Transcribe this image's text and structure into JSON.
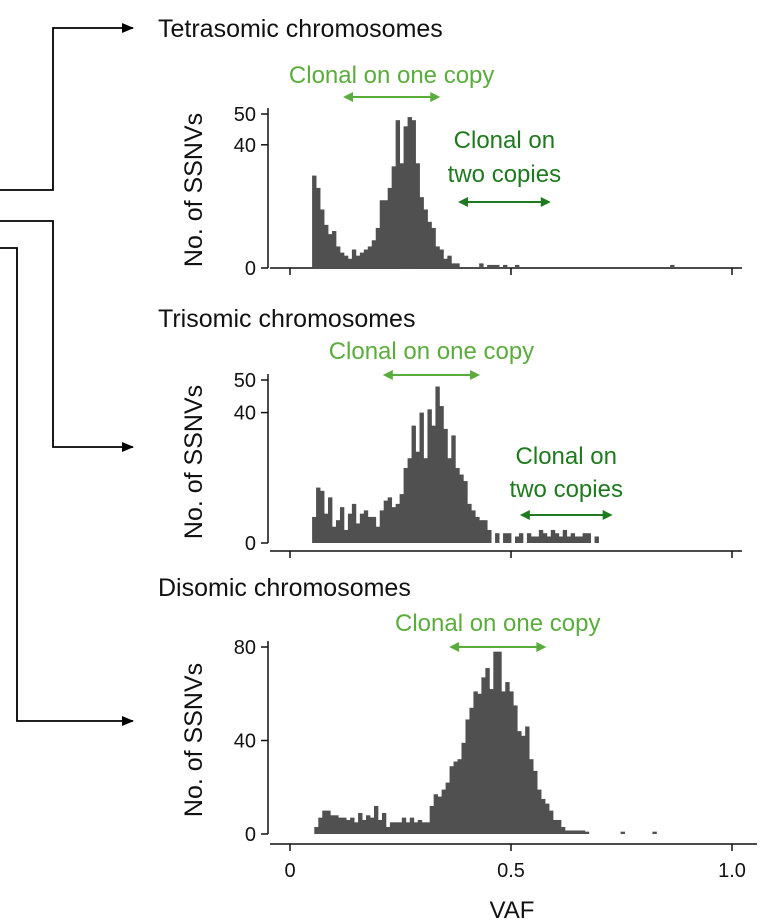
{
  "colors": {
    "bar": "#505050",
    "axis": "#111111",
    "light_green": "#5aad3c",
    "dark_green": "#1f7a1f",
    "connector": "#000000"
  },
  "chart_data": [
    {
      "type": "bar",
      "title": "Tetrasomic chromosomes",
      "xlabel": "",
      "ylabel": "No. of SSNVs",
      "xlim": [
        0,
        1.0
      ],
      "ylim": [
        0,
        50
      ],
      "yticks": [
        "0",
        "40",
        "50"
      ],
      "ytick_values": [
        0,
        40,
        50
      ],
      "annotations": [
        {
          "text": "Clonal on one copy",
          "color": "light_green",
          "span": [
            0.12,
            0.34
          ]
        },
        {
          "text": "Clonal on\ntwo copies",
          "color": "dark_green",
          "span": [
            0.38,
            0.59
          ]
        }
      ],
      "bins": [
        {
          "x": 0.05,
          "y": 30
        },
        {
          "x": 0.059,
          "y": 26
        },
        {
          "x": 0.068,
          "y": 19
        },
        {
          "x": 0.077,
          "y": 14
        },
        {
          "x": 0.086,
          "y": 11
        },
        {
          "x": 0.095,
          "y": 12
        },
        {
          "x": 0.104,
          "y": 7
        },
        {
          "x": 0.113,
          "y": 5
        },
        {
          "x": 0.122,
          "y": 4
        },
        {
          "x": 0.131,
          "y": 3
        },
        {
          "x": 0.14,
          "y": 6
        },
        {
          "x": 0.149,
          "y": 4
        },
        {
          "x": 0.158,
          "y": 5
        },
        {
          "x": 0.167,
          "y": 6
        },
        {
          "x": 0.176,
          "y": 7
        },
        {
          "x": 0.185,
          "y": 9
        },
        {
          "x": 0.194,
          "y": 13
        },
        {
          "x": 0.203,
          "y": 22
        },
        {
          "x": 0.212,
          "y": 22
        },
        {
          "x": 0.221,
          "y": 26
        },
        {
          "x": 0.23,
          "y": 33
        },
        {
          "x": 0.239,
          "y": 48
        },
        {
          "x": 0.248,
          "y": 34
        },
        {
          "x": 0.257,
          "y": 46
        },
        {
          "x": 0.266,
          "y": 49
        },
        {
          "x": 0.275,
          "y": 48
        },
        {
          "x": 0.284,
          "y": 34
        },
        {
          "x": 0.293,
          "y": 23
        },
        {
          "x": 0.302,
          "y": 19
        },
        {
          "x": 0.311,
          "y": 15
        },
        {
          "x": 0.32,
          "y": 13
        },
        {
          "x": 0.329,
          "y": 7
        },
        {
          "x": 0.338,
          "y": 6
        },
        {
          "x": 0.347,
          "y": 3
        },
        {
          "x": 0.356,
          "y": 4
        },
        {
          "x": 0.365,
          "y": 1.5
        },
        {
          "x": 0.374,
          "y": 1.5
        },
        {
          "x": 0.428,
          "y": 1.5
        },
        {
          "x": 0.446,
          "y": 1
        },
        {
          "x": 0.455,
          "y": 1
        },
        {
          "x": 0.464,
          "y": 1
        },
        {
          "x": 0.482,
          "y": 1
        },
        {
          "x": 0.509,
          "y": 1
        },
        {
          "x": 0.86,
          "y": 1
        }
      ]
    },
    {
      "type": "bar",
      "title": "Trisomic chromosomes",
      "xlabel": "",
      "ylabel": "No. of SSNVs",
      "xlim": [
        0,
        1.0
      ],
      "ylim": [
        0,
        50
      ],
      "yticks": [
        "0",
        "40",
        "50"
      ],
      "ytick_values": [
        0,
        40,
        50
      ],
      "annotations": [
        {
          "text": "Clonal on one copy",
          "color": "light_green",
          "span": [
            0.21,
            0.43
          ]
        },
        {
          "text": "Clonal on\ntwo copies",
          "color": "dark_green",
          "span": [
            0.52,
            0.73
          ]
        }
      ],
      "bins": [
        {
          "x": 0.05,
          "y": 8
        },
        {
          "x": 0.059,
          "y": 17
        },
        {
          "x": 0.068,
          "y": 16
        },
        {
          "x": 0.077,
          "y": 9
        },
        {
          "x": 0.086,
          "y": 14
        },
        {
          "x": 0.095,
          "y": 5
        },
        {
          "x": 0.104,
          "y": 7
        },
        {
          "x": 0.113,
          "y": 11
        },
        {
          "x": 0.122,
          "y": 4
        },
        {
          "x": 0.131,
          "y": 9
        },
        {
          "x": 0.14,
          "y": 12
        },
        {
          "x": 0.149,
          "y": 6
        },
        {
          "x": 0.158,
          "y": 9
        },
        {
          "x": 0.167,
          "y": 10
        },
        {
          "x": 0.176,
          "y": 8
        },
        {
          "x": 0.185,
          "y": 8
        },
        {
          "x": 0.194,
          "y": 5
        },
        {
          "x": 0.203,
          "y": 10
        },
        {
          "x": 0.212,
          "y": 13
        },
        {
          "x": 0.221,
          "y": 14
        },
        {
          "x": 0.23,
          "y": 11
        },
        {
          "x": 0.239,
          "y": 12
        },
        {
          "x": 0.248,
          "y": 15
        },
        {
          "x": 0.257,
          "y": 23
        },
        {
          "x": 0.266,
          "y": 26
        },
        {
          "x": 0.275,
          "y": 36
        },
        {
          "x": 0.284,
          "y": 28
        },
        {
          "x": 0.293,
          "y": 40
        },
        {
          "x": 0.302,
          "y": 26
        },
        {
          "x": 0.311,
          "y": 41
        },
        {
          "x": 0.32,
          "y": 36
        },
        {
          "x": 0.329,
          "y": 48
        },
        {
          "x": 0.338,
          "y": 42
        },
        {
          "x": 0.347,
          "y": 35
        },
        {
          "x": 0.356,
          "y": 26
        },
        {
          "x": 0.365,
          "y": 33
        },
        {
          "x": 0.374,
          "y": 23
        },
        {
          "x": 0.383,
          "y": 21
        },
        {
          "x": 0.392,
          "y": 19
        },
        {
          "x": 0.401,
          "y": 12
        },
        {
          "x": 0.41,
          "y": 10
        },
        {
          "x": 0.419,
          "y": 8
        },
        {
          "x": 0.428,
          "y": 7
        },
        {
          "x": 0.437,
          "y": 7
        },
        {
          "x": 0.446,
          "y": 4
        },
        {
          "x": 0.464,
          "y": 3
        },
        {
          "x": 0.482,
          "y": 3
        },
        {
          "x": 0.491,
          "y": 3
        },
        {
          "x": 0.509,
          "y": 2
        },
        {
          "x": 0.518,
          "y": 3
        },
        {
          "x": 0.536,
          "y": 3
        },
        {
          "x": 0.545,
          "y": 2
        },
        {
          "x": 0.554,
          "y": 2
        },
        {
          "x": 0.563,
          "y": 4
        },
        {
          "x": 0.572,
          "y": 3
        },
        {
          "x": 0.581,
          "y": 2
        },
        {
          "x": 0.59,
          "y": 4
        },
        {
          "x": 0.599,
          "y": 3
        },
        {
          "x": 0.608,
          "y": 2
        },
        {
          "x": 0.617,
          "y": 4
        },
        {
          "x": 0.626,
          "y": 2
        },
        {
          "x": 0.635,
          "y": 3
        },
        {
          "x": 0.644,
          "y": 2
        },
        {
          "x": 0.653,
          "y": 2
        },
        {
          "x": 0.662,
          "y": 3
        },
        {
          "x": 0.671,
          "y": 3
        },
        {
          "x": 0.689,
          "y": 2
        }
      ]
    },
    {
      "type": "bar",
      "title": "Disomic chromosomes",
      "xlabel": "VAF",
      "ylabel": "No. of SSNVs",
      "xlim": [
        0,
        1.0
      ],
      "ylim": [
        0,
        80
      ],
      "yticks": [
        "0",
        "40",
        "80"
      ],
      "ytick_values": [
        0,
        40,
        80
      ],
      "xticks": [
        "0",
        "0.5",
        "1.0"
      ],
      "xtick_values": [
        0,
        0.5,
        1.0
      ],
      "annotations": [
        {
          "text": "Clonal on one copy",
          "color": "light_green",
          "span": [
            0.36,
            0.58
          ]
        }
      ],
      "bins": [
        {
          "x": 0.055,
          "y": 3
        },
        {
          "x": 0.064,
          "y": 7
        },
        {
          "x": 0.073,
          "y": 10
        },
        {
          "x": 0.082,
          "y": 10
        },
        {
          "x": 0.091,
          "y": 8
        },
        {
          "x": 0.1,
          "y": 8
        },
        {
          "x": 0.109,
          "y": 7
        },
        {
          "x": 0.118,
          "y": 7
        },
        {
          "x": 0.127,
          "y": 6
        },
        {
          "x": 0.136,
          "y": 7
        },
        {
          "x": 0.145,
          "y": 5
        },
        {
          "x": 0.154,
          "y": 9
        },
        {
          "x": 0.163,
          "y": 6
        },
        {
          "x": 0.172,
          "y": 8
        },
        {
          "x": 0.181,
          "y": 7
        },
        {
          "x": 0.19,
          "y": 12
        },
        {
          "x": 0.199,
          "y": 6
        },
        {
          "x": 0.208,
          "y": 9
        },
        {
          "x": 0.217,
          "y": 3
        },
        {
          "x": 0.226,
          "y": 5
        },
        {
          "x": 0.235,
          "y": 5
        },
        {
          "x": 0.244,
          "y": 5
        },
        {
          "x": 0.253,
          "y": 7
        },
        {
          "x": 0.262,
          "y": 5
        },
        {
          "x": 0.271,
          "y": 7
        },
        {
          "x": 0.28,
          "y": 5
        },
        {
          "x": 0.289,
          "y": 6
        },
        {
          "x": 0.298,
          "y": 5
        },
        {
          "x": 0.307,
          "y": 5
        },
        {
          "x": 0.316,
          "y": 12
        },
        {
          "x": 0.325,
          "y": 17
        },
        {
          "x": 0.334,
          "y": 16
        },
        {
          "x": 0.343,
          "y": 19
        },
        {
          "x": 0.352,
          "y": 22
        },
        {
          "x": 0.361,
          "y": 29
        },
        {
          "x": 0.37,
          "y": 31
        },
        {
          "x": 0.379,
          "y": 32
        },
        {
          "x": 0.388,
          "y": 39
        },
        {
          "x": 0.397,
          "y": 49
        },
        {
          "x": 0.406,
          "y": 54
        },
        {
          "x": 0.415,
          "y": 61
        },
        {
          "x": 0.424,
          "y": 60
        },
        {
          "x": 0.433,
          "y": 67
        },
        {
          "x": 0.442,
          "y": 71
        },
        {
          "x": 0.451,
          "y": 62
        },
        {
          "x": 0.46,
          "y": 78
        },
        {
          "x": 0.469,
          "y": 78
        },
        {
          "x": 0.478,
          "y": 61
        },
        {
          "x": 0.487,
          "y": 65
        },
        {
          "x": 0.496,
          "y": 61
        },
        {
          "x": 0.505,
          "y": 55
        },
        {
          "x": 0.514,
          "y": 44
        },
        {
          "x": 0.523,
          "y": 42
        },
        {
          "x": 0.532,
          "y": 46
        },
        {
          "x": 0.541,
          "y": 32
        },
        {
          "x": 0.55,
          "y": 27
        },
        {
          "x": 0.559,
          "y": 19
        },
        {
          "x": 0.568,
          "y": 15
        },
        {
          "x": 0.577,
          "y": 13
        },
        {
          "x": 0.586,
          "y": 10
        },
        {
          "x": 0.595,
          "y": 6
        },
        {
          "x": 0.604,
          "y": 6
        },
        {
          "x": 0.613,
          "y": 3
        },
        {
          "x": 0.622,
          "y": 1.5
        },
        {
          "x": 0.631,
          "y": 1.5
        },
        {
          "x": 0.64,
          "y": 1.5
        },
        {
          "x": 0.649,
          "y": 1.5
        },
        {
          "x": 0.658,
          "y": 1.5
        },
        {
          "x": 0.667,
          "y": 1
        },
        {
          "x": 0.748,
          "y": 1
        },
        {
          "x": 0.82,
          "y": 1
        }
      ]
    }
  ]
}
